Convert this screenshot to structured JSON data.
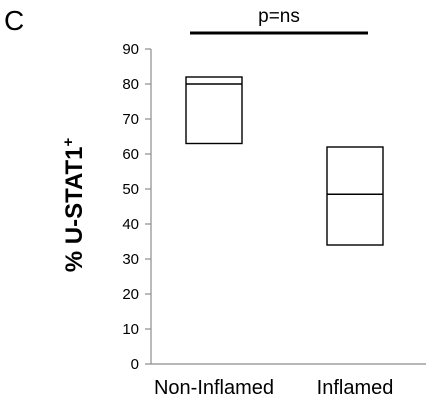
{
  "chart_data": {
    "type": "box",
    "panel_label": "C",
    "title": "",
    "ylabel": "% U-STAT1",
    "ylabel_superscript": "+",
    "xlabel": "",
    "ylim": [
      0,
      90
    ],
    "yticks": [
      0,
      10,
      20,
      30,
      40,
      50,
      60,
      70,
      80,
      90
    ],
    "grid": false,
    "categories": [
      "Non-Inflamed",
      "Inflamed"
    ],
    "boxes": [
      {
        "category": "Non-Inflamed",
        "min": 63,
        "median": 80,
        "max": 82
      },
      {
        "category": "Inflamed",
        "min": 34,
        "median": 48.5,
        "max": 62
      }
    ],
    "annotation": {
      "text": "p=ns",
      "between": [
        "Non-Inflamed",
        "Inflamed"
      ]
    }
  }
}
